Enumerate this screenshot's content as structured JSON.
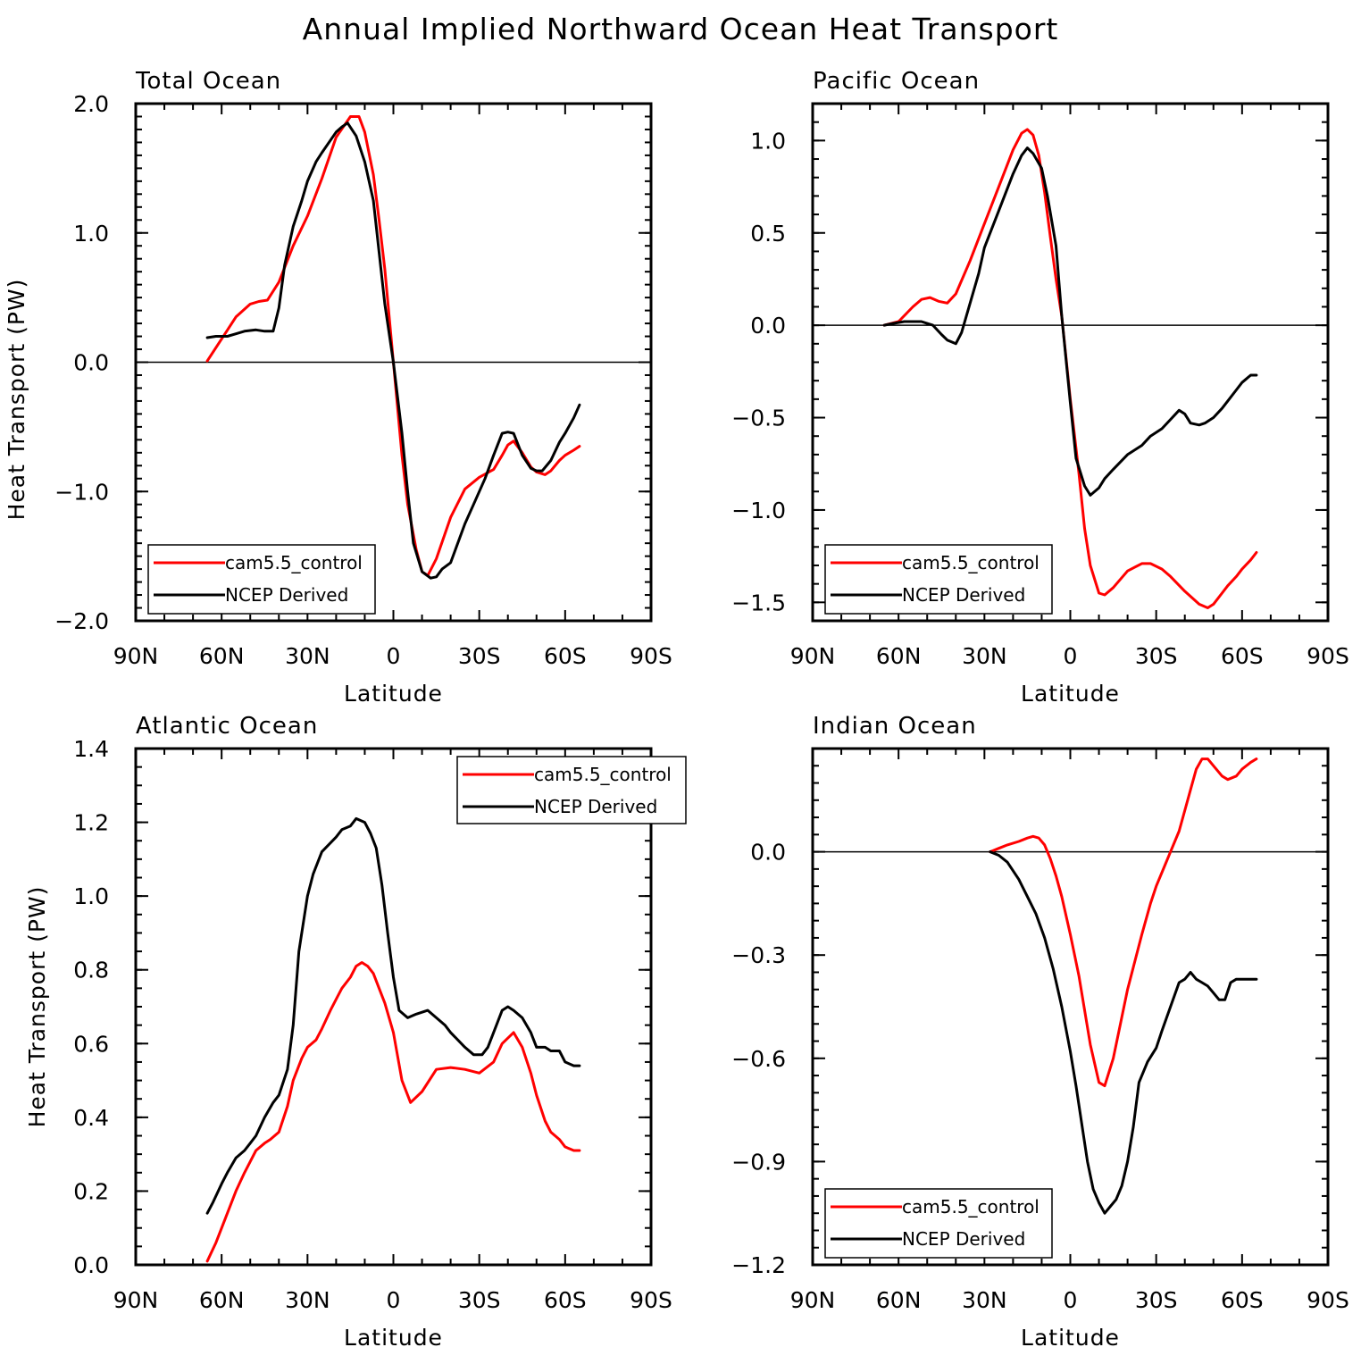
{
  "title": "Annual Implied Northward Ocean Heat Transport",
  "colors": {
    "cam": "#ff0000",
    "ncep": "#000000"
  },
  "chart_data": [
    {
      "type": "line",
      "title": "Total Ocean",
      "xlabel": "Latitude",
      "ylabel": "Heat Transport (PW)",
      "xlim": [
        -90,
        90
      ],
      "ylim": [
        -2.0,
        2.0
      ],
      "x_tick_labels": [
        "90N",
        "60N",
        "30N",
        "0",
        "30S",
        "60S",
        "90S"
      ],
      "y_tick_labels": [
        "−2.0",
        "−1.0",
        "0.0",
        "1.0",
        "2.0"
      ],
      "legend": "bottom-left",
      "series": [
        {
          "name": "cam5.5_control",
          "color": "#ff0000",
          "x": [
            -65,
            -60,
            -55,
            -50,
            -47,
            -44,
            -40,
            -35,
            -30,
            -25,
            -20,
            -15,
            -12,
            -10,
            -7,
            -5,
            -3,
            0,
            3,
            5,
            8,
            10,
            12,
            15,
            20,
            25,
            30,
            35,
            38,
            40,
            42,
            45,
            48,
            50,
            53,
            55,
            58,
            60,
            63,
            65
          ],
          "y": [
            0.01,
            0.18,
            0.35,
            0.45,
            0.47,
            0.48,
            0.62,
            0.9,
            1.13,
            1.42,
            1.74,
            1.9,
            1.9,
            1.78,
            1.45,
            1.1,
            0.72,
            0.0,
            -0.72,
            -1.1,
            -1.45,
            -1.62,
            -1.65,
            -1.52,
            -1.2,
            -0.98,
            -0.89,
            -0.83,
            -0.72,
            -0.64,
            -0.61,
            -0.7,
            -0.81,
            -0.85,
            -0.87,
            -0.84,
            -0.76,
            -0.72,
            -0.68,
            -0.65
          ]
        },
        {
          "name": "NCEP Derived",
          "color": "#000000",
          "x": [
            -65,
            -62,
            -58,
            -55,
            -52,
            -48,
            -45,
            -42,
            -40,
            -38,
            -35,
            -32,
            -30,
            -27,
            -25,
            -20,
            -18,
            -16,
            -13,
            -10,
            -7,
            -5,
            -3,
            0,
            3,
            5,
            7,
            10,
            13,
            15,
            17,
            20,
            25,
            28,
            32,
            35,
            38,
            40,
            42,
            45,
            48,
            50,
            52,
            55,
            58,
            60,
            63,
            65
          ],
          "y": [
            0.19,
            0.2,
            0.2,
            0.22,
            0.24,
            0.25,
            0.24,
            0.24,
            0.42,
            0.75,
            1.05,
            1.25,
            1.4,
            1.55,
            1.62,
            1.78,
            1.82,
            1.85,
            1.75,
            1.55,
            1.25,
            0.85,
            0.45,
            0.0,
            -0.55,
            -1.0,
            -1.4,
            -1.62,
            -1.67,
            -1.66,
            -1.6,
            -1.55,
            -1.25,
            -1.1,
            -0.9,
            -0.72,
            -0.55,
            -0.54,
            -0.55,
            -0.72,
            -0.82,
            -0.84,
            -0.84,
            -0.76,
            -0.62,
            -0.55,
            -0.43,
            -0.33
          ]
        }
      ]
    },
    {
      "type": "line",
      "title": "Pacific Ocean",
      "xlabel": "Latitude",
      "ylabel": "",
      "xlim": [
        -90,
        90
      ],
      "ylim": [
        -1.6,
        1.2
      ],
      "x_tick_labels": [
        "90N",
        "60N",
        "30N",
        "0",
        "30S",
        "60S",
        "90S"
      ],
      "y_tick_labels": [
        "−1.5",
        "−1.0",
        "−0.5",
        "0.0",
        "0.5",
        "1.0"
      ],
      "legend": "bottom-left",
      "series": [
        {
          "name": "cam5.5_control",
          "color": "#ff0000",
          "x": [
            -65,
            -60,
            -55,
            -52,
            -49,
            -46,
            -43,
            -40,
            -35,
            -30,
            -25,
            -20,
            -17,
            -15,
            -13,
            -11,
            -9,
            -7,
            -5,
            -3,
            0,
            3,
            5,
            7,
            10,
            12,
            15,
            20,
            25,
            28,
            32,
            35,
            40,
            45,
            48,
            50,
            53,
            55,
            58,
            60,
            63,
            65
          ],
          "y": [
            0.0,
            0.02,
            0.1,
            0.14,
            0.15,
            0.13,
            0.12,
            0.17,
            0.35,
            0.55,
            0.75,
            0.95,
            1.04,
            1.06,
            1.03,
            0.92,
            0.72,
            0.48,
            0.25,
            0.05,
            -0.4,
            -0.8,
            -1.1,
            -1.3,
            -1.45,
            -1.46,
            -1.42,
            -1.33,
            -1.29,
            -1.29,
            -1.32,
            -1.36,
            -1.44,
            -1.51,
            -1.53,
            -1.51,
            -1.45,
            -1.41,
            -1.36,
            -1.32,
            -1.27,
            -1.23
          ]
        },
        {
          "name": "NCEP Derived",
          "color": "#000000",
          "x": [
            -65,
            -62,
            -58,
            -55,
            -52,
            -50,
            -48,
            -45,
            -43,
            -40,
            -38,
            -35,
            -32,
            -30,
            -25,
            -20,
            -17,
            -15,
            -13,
            -10,
            -8,
            -5,
            -3,
            0,
            2,
            5,
            7,
            10,
            12,
            15,
            20,
            25,
            28,
            32,
            35,
            38,
            40,
            42,
            45,
            47,
            50,
            53,
            55,
            58,
            60,
            63,
            65
          ],
          "y": [
            0.0,
            0.01,
            0.02,
            0.02,
            0.02,
            0.01,
            0.0,
            -0.05,
            -0.08,
            -0.1,
            -0.04,
            0.12,
            0.28,
            0.42,
            0.62,
            0.82,
            0.92,
            0.96,
            0.93,
            0.85,
            0.7,
            0.43,
            0.05,
            -0.42,
            -0.72,
            -0.87,
            -0.92,
            -0.88,
            -0.83,
            -0.78,
            -0.7,
            -0.65,
            -0.6,
            -0.56,
            -0.51,
            -0.46,
            -0.48,
            -0.53,
            -0.54,
            -0.53,
            -0.5,
            -0.45,
            -0.41,
            -0.35,
            -0.31,
            -0.27,
            -0.27
          ]
        }
      ]
    },
    {
      "type": "line",
      "title": "Atlantic Ocean",
      "xlabel": "Latitude",
      "ylabel": "Heat Transport (PW)",
      "xlim": [
        -90,
        90
      ],
      "ylim": [
        0.0,
        1.4
      ],
      "x_tick_labels": [
        "90N",
        "60N",
        "30N",
        "0",
        "30S",
        "60S",
        "90S"
      ],
      "y_tick_labels": [
        "0.0",
        "0.2",
        "0.4",
        "0.6",
        "0.8",
        "1.0",
        "1.2",
        "1.4"
      ],
      "legend": "top-right",
      "series": [
        {
          "name": "cam5.5_control",
          "color": "#ff0000",
          "x": [
            -65,
            -62,
            -58,
            -55,
            -52,
            -50,
            -48,
            -45,
            -43,
            -40,
            -37,
            -35,
            -32,
            -30,
            -27,
            -25,
            -22,
            -20,
            -18,
            -15,
            -13,
            -11,
            -9,
            -7,
            -5,
            -3,
            0,
            3,
            6,
            10,
            15,
            20,
            25,
            30,
            35,
            38,
            42,
            45,
            48,
            50,
            53,
            55,
            58,
            60,
            63,
            65
          ],
          "y": [
            0.01,
            0.06,
            0.14,
            0.2,
            0.25,
            0.28,
            0.31,
            0.33,
            0.34,
            0.36,
            0.43,
            0.5,
            0.56,
            0.59,
            0.61,
            0.64,
            0.69,
            0.72,
            0.75,
            0.78,
            0.81,
            0.82,
            0.81,
            0.79,
            0.75,
            0.71,
            0.63,
            0.5,
            0.44,
            0.47,
            0.53,
            0.535,
            0.53,
            0.52,
            0.55,
            0.6,
            0.63,
            0.59,
            0.52,
            0.46,
            0.39,
            0.36,
            0.34,
            0.32,
            0.31,
            0.31
          ]
        },
        {
          "name": "NCEP Derived",
          "color": "#000000",
          "x": [
            -65,
            -63,
            -60,
            -58,
            -55,
            -52,
            -50,
            -48,
            -45,
            -42,
            -40,
            -37,
            -35,
            -33,
            -30,
            -28,
            -25,
            -20,
            -18,
            -15,
            -13,
            -10,
            -8,
            -6,
            -4,
            -2,
            0,
            2,
            5,
            8,
            12,
            15,
            18,
            20,
            25,
            28,
            31,
            33,
            35,
            38,
            40,
            42,
            45,
            48,
            50,
            53,
            55,
            58,
            60,
            63,
            65
          ],
          "y": [
            0.14,
            0.17,
            0.22,
            0.25,
            0.29,
            0.31,
            0.33,
            0.35,
            0.4,
            0.44,
            0.46,
            0.53,
            0.65,
            0.85,
            1.0,
            1.06,
            1.12,
            1.16,
            1.18,
            1.19,
            1.21,
            1.2,
            1.17,
            1.13,
            1.03,
            0.9,
            0.78,
            0.69,
            0.67,
            0.68,
            0.69,
            0.67,
            0.65,
            0.63,
            0.59,
            0.57,
            0.57,
            0.59,
            0.63,
            0.69,
            0.7,
            0.69,
            0.67,
            0.63,
            0.59,
            0.59,
            0.58,
            0.58,
            0.55,
            0.54,
            0.54
          ]
        }
      ]
    },
    {
      "type": "line",
      "title": "Indian Ocean",
      "xlabel": "Latitude",
      "ylabel": "",
      "xlim": [
        -90,
        90
      ],
      "ylim": [
        -1.2,
        0.3
      ],
      "x_tick_labels": [
        "90N",
        "60N",
        "30N",
        "0",
        "30S",
        "60S",
        "90S"
      ],
      "y_tick_labels": [
        "−1.2",
        "−0.9",
        "−0.6",
        "−0.3",
        "0.0"
      ],
      "legend": "bottom-left",
      "series": [
        {
          "name": "cam5.5_control",
          "color": "#ff0000",
          "x": [
            -28,
            -25,
            -22,
            -18,
            -15,
            -13,
            -11,
            -9,
            -7,
            -5,
            -3,
            0,
            3,
            5,
            7,
            10,
            12,
            15,
            18,
            20,
            25,
            28,
            30,
            33,
            35,
            38,
            40,
            42,
            44,
            46,
            48,
            50,
            53,
            55,
            58,
            60,
            63,
            65
          ],
          "y": [
            0.0,
            0.01,
            0.02,
            0.03,
            0.04,
            0.045,
            0.04,
            0.02,
            -0.02,
            -0.07,
            -0.13,
            -0.24,
            -0.36,
            -0.46,
            -0.56,
            -0.67,
            -0.68,
            -0.6,
            -0.48,
            -0.4,
            -0.24,
            -0.15,
            -0.1,
            -0.04,
            0.0,
            0.06,
            0.12,
            0.18,
            0.24,
            0.27,
            0.27,
            0.25,
            0.22,
            0.21,
            0.22,
            0.24,
            0.26,
            0.27
          ]
        },
        {
          "name": "NCEP Derived",
          "color": "#000000",
          "x": [
            -28,
            -25,
            -22,
            -18,
            -15,
            -12,
            -9,
            -6,
            -3,
            0,
            2,
            4,
            6,
            8,
            10,
            12,
            14,
            16,
            18,
            20,
            22,
            24,
            27,
            30,
            32,
            35,
            38,
            40,
            42,
            44,
            46,
            48,
            50,
            52,
            54,
            56,
            58,
            60,
            63,
            65
          ],
          "y": [
            0.0,
            -0.01,
            -0.03,
            -0.08,
            -0.13,
            -0.18,
            -0.25,
            -0.34,
            -0.45,
            -0.58,
            -0.68,
            -0.79,
            -0.9,
            -0.98,
            -1.02,
            -1.05,
            -1.03,
            -1.01,
            -0.97,
            -0.9,
            -0.8,
            -0.67,
            -0.61,
            -0.57,
            -0.52,
            -0.45,
            -0.38,
            -0.37,
            -0.35,
            -0.37,
            -0.38,
            -0.39,
            -0.41,
            -0.43,
            -0.43,
            -0.38,
            -0.37,
            -0.37,
            -0.37,
            -0.37
          ]
        }
      ]
    }
  ]
}
